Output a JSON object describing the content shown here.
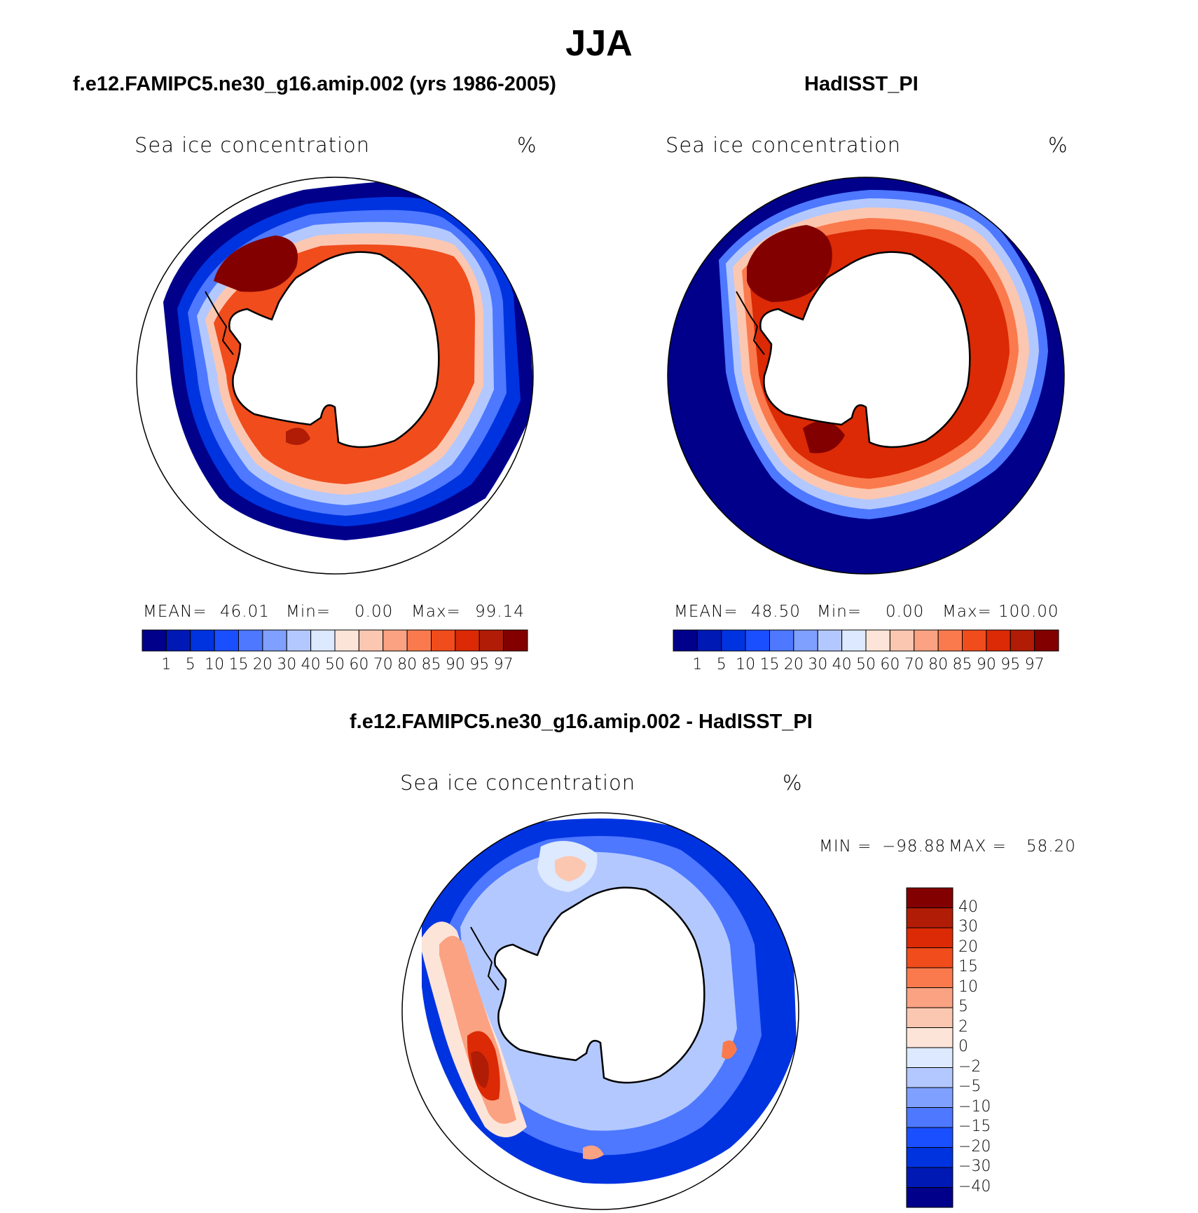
{
  "title": "JJA",
  "colors": {
    "seq": [
      "#00008b",
      "#0019b4",
      "#0033e0",
      "#1a4fff",
      "#4d78ff",
      "#7fa0ff",
      "#b3c8ff",
      "#dce9ff",
      "#fde4d8",
      "#fcc7b0",
      "#fba282",
      "#fa7a4d",
      "#f04c1c",
      "#db2a05",
      "#b01c05",
      "#830000"
    ],
    "div": [
      "#00008b",
      "#0019b4",
      "#0033e0",
      "#1a4fff",
      "#4d78ff",
      "#7fa0ff",
      "#b3c8ff",
      "#dce9ff",
      "#fde4d8",
      "#fcc7b0",
      "#fba282",
      "#fa7a4d",
      "#f04c1c",
      "#db2a05",
      "#b01c05",
      "#830000"
    ],
    "land": "#ffffff",
    "coast": "#000000"
  },
  "panels": [
    {
      "title": "f.e12.FAMIPC5.ne30_g16.amip.002 (yrs 1986-2005)",
      "variable": "Sea ice concentration",
      "units": "%",
      "stats": {
        "mean_label": "MEAN=",
        "mean": "46.01",
        "min_label": "Min=",
        "min": "0.00",
        "max_label": "Max=",
        "max": "99.14"
      },
      "colorbar_labels": [
        "1",
        "5",
        "10",
        "15",
        "20",
        "30",
        "40",
        "50",
        "60",
        "70",
        "80",
        "85",
        "90",
        "95",
        "97"
      ]
    },
    {
      "title": "HadISST_PI",
      "variable": "Sea ice concentration",
      "units": "%",
      "stats": {
        "mean_label": "MEAN=",
        "mean": "48.50",
        "min_label": "Min=",
        "min": "0.00",
        "max_label": "Max=",
        "max": "100.00"
      },
      "colorbar_labels": [
        "1",
        "5",
        "10",
        "15",
        "20",
        "30",
        "40",
        "50",
        "60",
        "70",
        "80",
        "85",
        "90",
        "95",
        "97"
      ]
    },
    {
      "title": "f.e12.FAMIPC5.ne30_g16.amip.002 - HadISST_PI",
      "variable": "Sea ice concentration",
      "units": "%",
      "stats": {
        "min_label": "MIN =",
        "min": "−98.88",
        "max_label": "MAX =",
        "max": "58.20"
      },
      "colorbar_labels": [
        "40",
        "30",
        "20",
        "15",
        "10",
        "5",
        "2",
        "0",
        "−2",
        "−5",
        "−10",
        "−15",
        "−20",
        "−30",
        "−40"
      ]
    }
  ]
}
